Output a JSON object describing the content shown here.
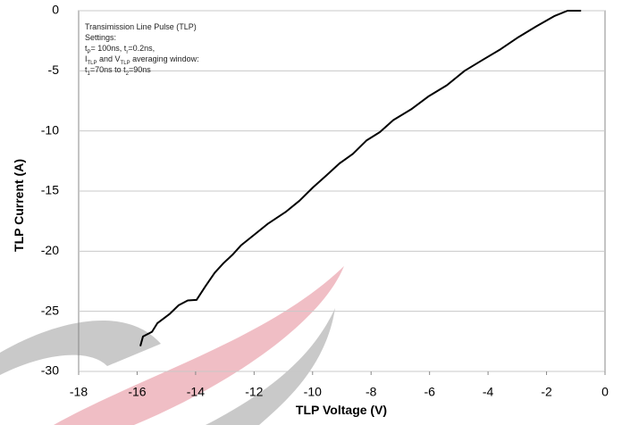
{
  "chart_data": {
    "type": "line",
    "x": [
      -15.89,
      -15.8,
      -15.49,
      -15.31,
      -14.88,
      -14.58,
      -14.27,
      -13.97,
      -13.66,
      -13.35,
      -13.05,
      -12.74,
      -12.44,
      -11.98,
      -11.52,
      -10.9,
      -10.45,
      -9.99,
      -9.53,
      -9.08,
      -8.62,
      -8.16,
      -7.7,
      -7.24,
      -6.63,
      -6.02,
      -5.41,
      -4.8,
      -4.19,
      -3.57,
      -2.96,
      -2.35,
      -1.74,
      -1.28,
      -0.82
    ],
    "values": [
      -27.9,
      -27.1,
      -26.7,
      -26.0,
      -25.2,
      -24.5,
      -24.1,
      -24.05,
      -22.9,
      -21.8,
      -21.0,
      -20.3,
      -19.5,
      -18.6,
      -17.7,
      -16.7,
      -15.8,
      -14.7,
      -13.7,
      -12.7,
      -11.9,
      -10.8,
      -10.1,
      -9.1,
      -8.2,
      -7.1,
      -6.2,
      -5.0,
      -4.1,
      -3.2,
      -2.2,
      -1.3,
      -0.45,
      0,
      0
    ],
    "color": "#000000",
    "xlabel": "TLP Voltage (V)",
    "ylabel": "TLP Current (A)",
    "xlim": [
      -18,
      0
    ],
    "xticks": [
      -18,
      -16,
      -14,
      -12,
      -10,
      -8,
      -6,
      -4,
      -2,
      0
    ],
    "ylim": [
      -30,
      0
    ],
    "yticks": [
      0,
      -5,
      -10,
      -15,
      -20,
      -25,
      -30
    ],
    "grid": true,
    "annotation": [
      [
        {
          "text": "Transimission Line Pulse (TLP)"
        }
      ],
      [
        {
          "text": "Settings:"
        }
      ],
      [
        {
          "text": "t"
        },
        {
          "sub": "P"
        },
        {
          "text": "= 100ns, t"
        },
        {
          "sub": "r"
        },
        {
          "text": "=0.2ns,"
        }
      ],
      [
        {
          "text": "I"
        },
        {
          "sub": "TLP"
        },
        {
          "text": " and V"
        },
        {
          "sub": "TLP"
        },
        {
          "text": " averaging window:"
        }
      ],
      [
        {
          "text": "t"
        },
        {
          "sub": "1"
        },
        {
          "text": "=70ns to t"
        },
        {
          "sub": "2"
        },
        {
          "text": "=90ns"
        }
      ]
    ]
  }
}
